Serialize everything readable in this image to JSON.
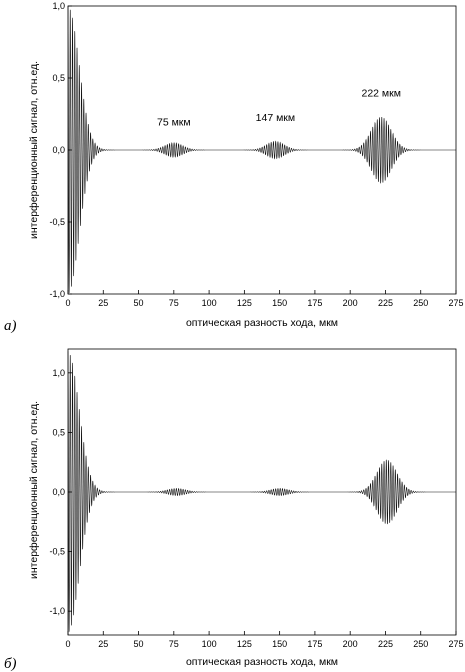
{
  "chart_data": [
    {
      "type": "line",
      "panel_label": "а)",
      "xlabel": "оптическая разность хода, мкм",
      "ylabel": "интерференционный сигнал, отн.ед.",
      "xlim": [
        0,
        275
      ],
      "ylim": [
        -1.0,
        1.0
      ],
      "xticks": [
        "0",
        "25",
        "50",
        "75",
        "100",
        "125",
        "150",
        "175",
        "200",
        "225",
        "250",
        "275"
      ],
      "yticks": [
        "1,0",
        "0,5",
        "0,0",
        "-0,5",
        "-1,0"
      ],
      "ytick_values": [
        1.0,
        0.5,
        0.0,
        -0.5,
        -1.0
      ],
      "annotations": [
        {
          "text": "75 мкм",
          "x": 75,
          "y": 0.17
        },
        {
          "text": "147 мкм",
          "x": 147,
          "y": 0.2
        },
        {
          "text": "222 мкм",
          "x": 222,
          "y": 0.37
        }
      ],
      "envelope_peaks": [
        {
          "center": 0,
          "amplitude": 1.0
        },
        {
          "center": 75,
          "amplitude": 0.05
        },
        {
          "center": 147,
          "amplitude": 0.06
        },
        {
          "center": 222,
          "amplitude": 0.23
        }
      ]
    },
    {
      "type": "line",
      "panel_label": "б)",
      "xlabel": "оптическая разность хода, мкм",
      "ylabel": "интерференционный сигнал, отн.ед.",
      "xlim": [
        0,
        275
      ],
      "ylim": [
        -1.2,
        1.2
      ],
      "xticks": [
        "0",
        "25",
        "50",
        "75",
        "100",
        "125",
        "150",
        "175",
        "200",
        "225",
        "250",
        "275"
      ],
      "yticks": [
        "1,0",
        "0,5",
        "0,0",
        "-0,5",
        "-1,0"
      ],
      "ytick_values": [
        1.0,
        0.5,
        0.0,
        -0.5,
        -1.0
      ],
      "annotations": [],
      "envelope_peaks": [
        {
          "center": 0,
          "amplitude": 1.18
        },
        {
          "center": 77,
          "amplitude": 0.03
        },
        {
          "center": 150,
          "amplitude": 0.03
        },
        {
          "center": 226,
          "amplitude": 0.27
        }
      ]
    }
  ]
}
